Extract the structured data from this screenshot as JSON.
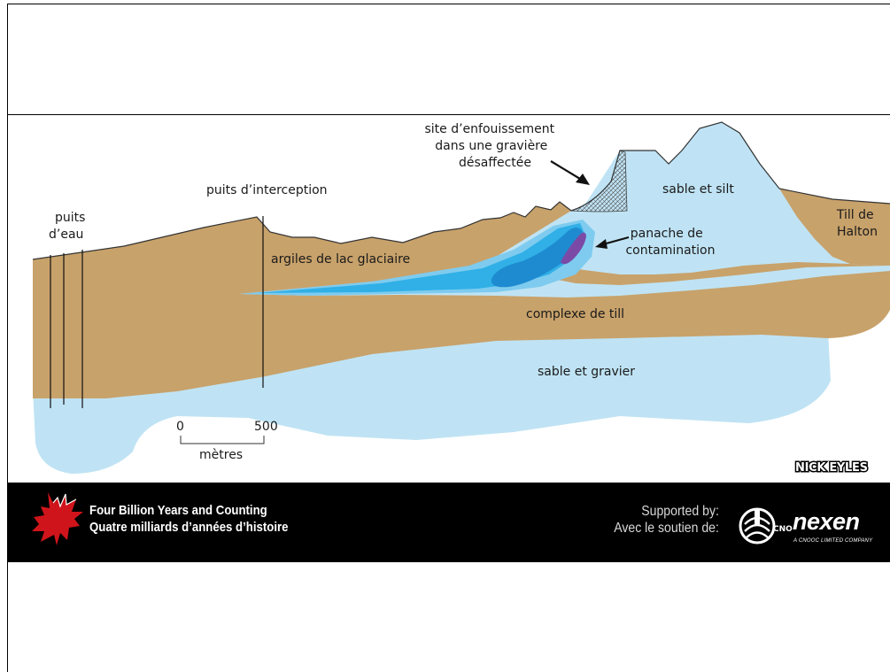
{
  "diagram": {
    "labels": {
      "water_wells": [
        "puits",
        "d’eau"
      ],
      "interception_well": "puits d’interception",
      "landfill": [
        "site d’enfouissement",
        "dans une gravière",
        "désaffectée"
      ],
      "sand_silt": "sable et silt",
      "halton_till": [
        "Till de",
        "Halton"
      ],
      "plume": [
        "panache de",
        "contamination"
      ],
      "glacial_clay": "argiles de lac glaciaire",
      "till_complex": "complexe de till",
      "sand_gravel": "sable et gravier"
    },
    "scale": {
      "start": "0",
      "end": "500",
      "unit": "mètres"
    },
    "credit": "NICK EYLES",
    "colors": {
      "till": "#c8a26b",
      "sand": "#bfe3f4",
      "plume_outer": "#7ecbef",
      "plume_mid": "#30b0e6",
      "plume_core": "#1e8bd0",
      "plume_center": "#7b4aa6"
    }
  },
  "footer": {
    "title_line1": "Four Billion Years and Counting",
    "title_line2": "Quatre milliards d’années d’histoire",
    "support_line1": "Supported by:",
    "support_line2": "Avec le soutien de:",
    "nexen": "nexen",
    "nexen_tagline": "A CNOOC LIMITED COMPANY",
    "cnooc": "CNOOC",
    "icons": [
      "maple-leaf-icon",
      "cnooc-logo-icon"
    ]
  }
}
